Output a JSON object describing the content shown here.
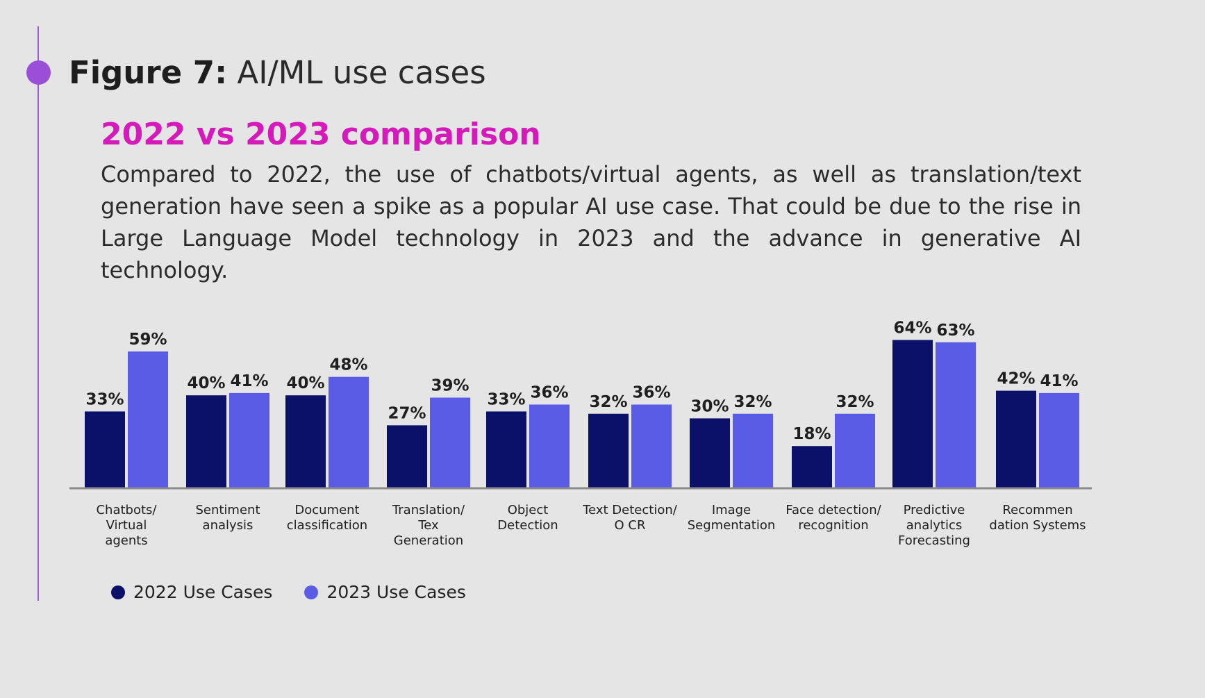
{
  "header": {
    "figure_label": "Figure 7:",
    "figure_title": "AI/ML use cases",
    "subtitle": "2022 vs 2023 comparison",
    "description": "Compared to 2022, the use of chatbots/virtual agents, as well as translation/text generation have seen a spike as a popular AI use case. That could be due to the rise in Large Language Model technology in 2023 and the advance in generative AI technology."
  },
  "colors": {
    "series_2022": "#0b1068",
    "series_2023": "#5a5ce6",
    "axis": "#8a8a8a",
    "accent_line": "#9b59d6",
    "subtitle": "#d41ab8"
  },
  "chart_data": {
    "type": "bar",
    "categories": [
      [
        "Chatbots/",
        "Virtual",
        "agents"
      ],
      [
        "Sentiment",
        "analysis"
      ],
      [
        "Document",
        "classification"
      ],
      [
        "Translation/",
        "Tex",
        "Generation"
      ],
      [
        "Object",
        "Detection"
      ],
      [
        "Text Detection/",
        "O CR"
      ],
      [
        "Image",
        "Segmentation"
      ],
      [
        "Face detection/",
        "recognition"
      ],
      [
        "Predictive",
        "analytics",
        "Forecasting"
      ],
      [
        "Recommen",
        "dation Systems"
      ]
    ],
    "series": [
      {
        "name": "2022 Use Cases",
        "values": [
          33,
          40,
          40,
          27,
          33,
          32,
          30,
          18,
          64,
          42
        ],
        "labels": [
          "33%",
          "40%",
          "40%",
          "27%",
          "33%",
          "32%",
          "30%",
          "18%",
          "64%",
          "42%"
        ]
      },
      {
        "name": "2023 Use Cases",
        "values": [
          59,
          41,
          48,
          39,
          36,
          36,
          32,
          32,
          63,
          41
        ],
        "labels": [
          "59%",
          "41%",
          "48%",
          "39%",
          "36%",
          "36%",
          "32%",
          "32%",
          "63%",
          "41%"
        ]
      }
    ],
    "legend_position": "bottom-left",
    "grid": false
  }
}
